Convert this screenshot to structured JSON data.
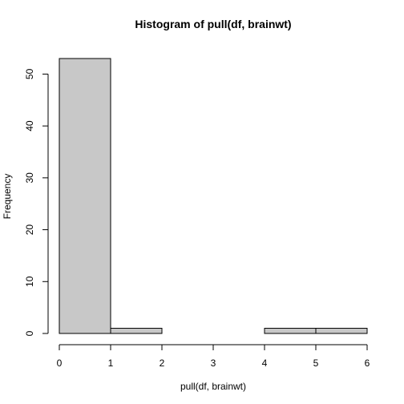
{
  "chart_data": {
    "type": "bar",
    "title": "Histogram of pull(df, brainwt)",
    "xlabel": "pull(df, brainwt)",
    "ylabel": "Frequency",
    "bins": [
      {
        "from": 0,
        "to": 1,
        "count": 53
      },
      {
        "from": 1,
        "to": 2,
        "count": 1
      },
      {
        "from": 2,
        "to": 3,
        "count": 0
      },
      {
        "from": 3,
        "to": 4,
        "count": 0
      },
      {
        "from": 4,
        "to": 5,
        "count": 1
      },
      {
        "from": 5,
        "to": 6,
        "count": 1
      }
    ],
    "xlim": [
      0,
      6
    ],
    "ylim": [
      0,
      53
    ],
    "x_ticks": [
      0,
      1,
      2,
      3,
      4,
      5,
      6
    ],
    "y_ticks": [
      0,
      10,
      20,
      30,
      40,
      50
    ],
    "bar_fill": "#c8c8c8",
    "grid": false
  }
}
